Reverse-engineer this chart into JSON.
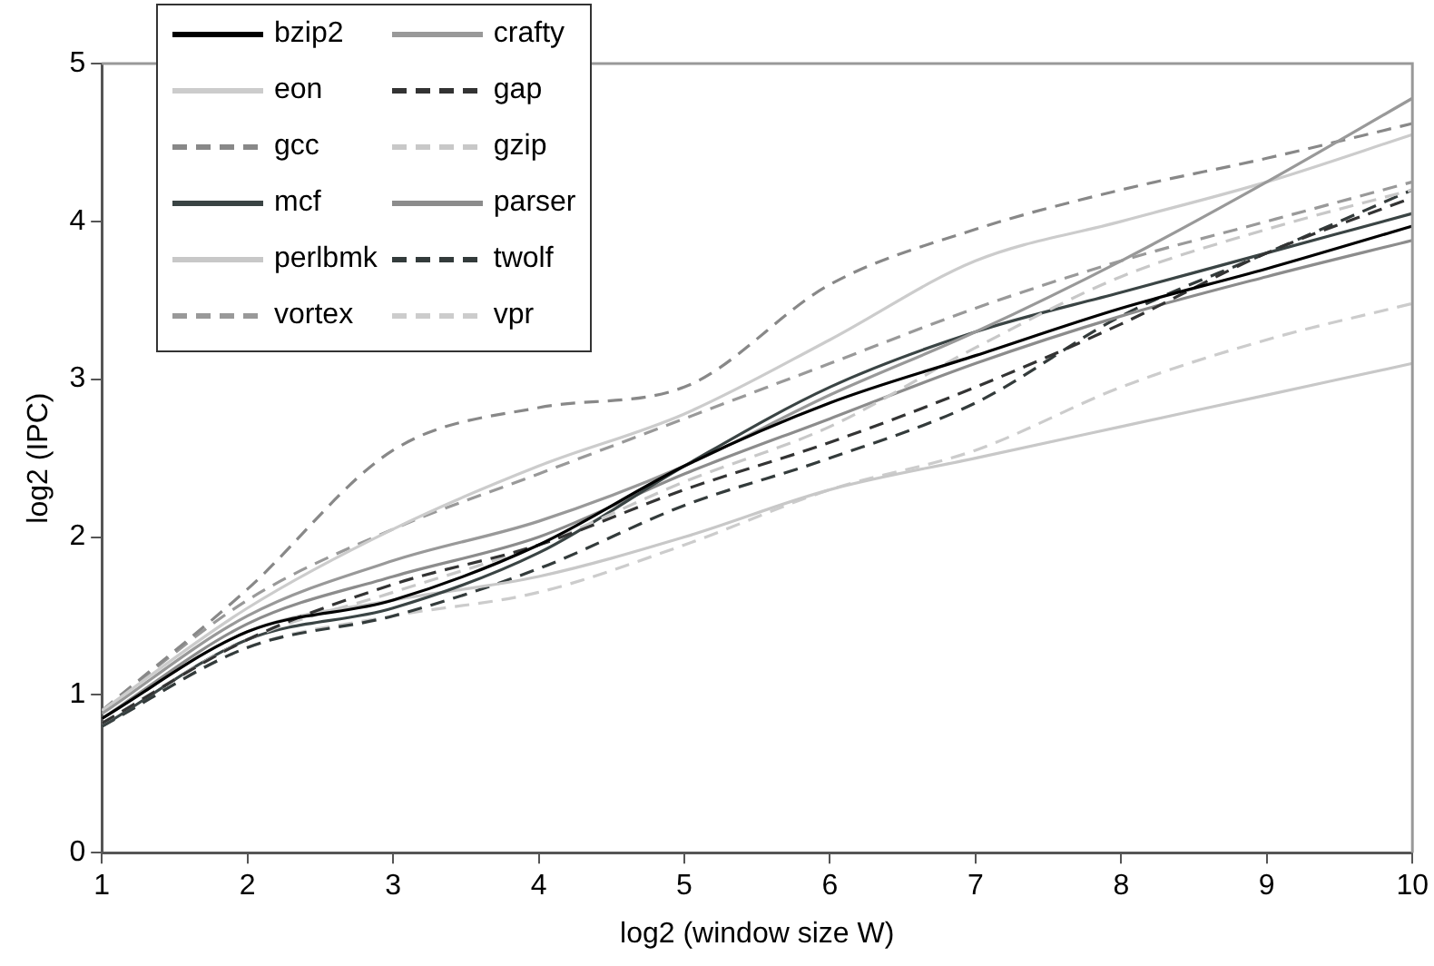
{
  "chart_data": {
    "type": "line",
    "xlabel": "log2 (window size W)",
    "ylabel": "log2 (IPC)",
    "x": [
      1,
      2,
      3,
      4,
      5,
      6,
      7,
      8,
      9,
      10
    ],
    "xlim": [
      1,
      10
    ],
    "xticks": [
      1,
      2,
      3,
      4,
      5,
      6,
      7,
      8,
      9,
      10
    ],
    "ylim": [
      0,
      5
    ],
    "yticks": [
      0,
      1,
      2,
      3,
      4,
      5
    ],
    "grid": false,
    "legend": "top left",
    "marker": "none",
    "series": [
      {
        "name": "bzip2",
        "color": "#000000",
        "line_style": "solid",
        "values": [
          0.85,
          1.4,
          1.6,
          1.95,
          2.45,
          2.85,
          3.15,
          3.45,
          3.7,
          3.97
        ]
      },
      {
        "name": "crafty",
        "color": "#999999",
        "line_style": "solid",
        "values": [
          0.88,
          1.5,
          1.85,
          2.1,
          2.45,
          2.9,
          3.3,
          3.75,
          4.25,
          4.78
        ]
      },
      {
        "name": "eon",
        "color": "#cccccc",
        "line_style": "solid",
        "values": [
          0.9,
          1.55,
          2.05,
          2.45,
          2.78,
          3.25,
          3.75,
          4.0,
          4.25,
          4.55
        ]
      },
      {
        "name": "gap",
        "color": "#333333",
        "line_style": "dashed",
        "values": [
          0.82,
          1.35,
          1.7,
          1.95,
          2.3,
          2.6,
          2.95,
          3.35,
          3.8,
          4.15
        ]
      },
      {
        "name": "gcc",
        "color": "#888888",
        "line_style": "dashed",
        "values": [
          0.9,
          1.67,
          2.55,
          2.82,
          2.95,
          3.6,
          3.95,
          4.2,
          4.4,
          4.62
        ]
      },
      {
        "name": "gzip",
        "color": "#c8c8c8",
        "line_style": "dashed",
        "values": [
          0.82,
          1.35,
          1.65,
          1.95,
          2.35,
          2.7,
          3.2,
          3.65,
          3.95,
          4.2
        ]
      },
      {
        "name": "mcf",
        "color": "#3a4444",
        "line_style": "solid",
        "values": [
          0.8,
          1.35,
          1.55,
          1.9,
          2.45,
          2.95,
          3.3,
          3.55,
          3.8,
          4.05
        ]
      },
      {
        "name": "parser",
        "color": "#8c8c8c",
        "line_style": "solid",
        "values": [
          0.85,
          1.45,
          1.75,
          2.0,
          2.4,
          2.75,
          3.1,
          3.4,
          3.65,
          3.88
        ]
      },
      {
        "name": "perlbmk",
        "color": "#c8c8c8",
        "line_style": "solid",
        "values": [
          0.85,
          1.4,
          1.6,
          1.75,
          2.0,
          2.3,
          2.5,
          2.7,
          2.9,
          3.1
        ]
      },
      {
        "name": "twolf",
        "color": "#333b3b",
        "line_style": "dashed",
        "values": [
          0.8,
          1.3,
          1.5,
          1.8,
          2.2,
          2.5,
          2.85,
          3.4,
          3.8,
          4.2
        ]
      },
      {
        "name": "vortex",
        "color": "#999999",
        "line_style": "dashed",
        "values": [
          0.9,
          1.6,
          2.05,
          2.4,
          2.75,
          3.1,
          3.45,
          3.75,
          4.0,
          4.25
        ]
      },
      {
        "name": "vpr",
        "color": "#cccccc",
        "line_style": "dashed",
        "values": [
          0.8,
          1.3,
          1.5,
          1.65,
          1.95,
          2.3,
          2.55,
          2.95,
          3.25,
          3.48
        ]
      }
    ]
  }
}
